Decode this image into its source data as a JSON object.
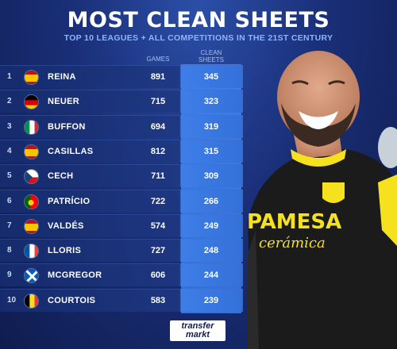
{
  "title": "MOST CLEAN SHEETS",
  "subtitle": "TOP 10 LEAGUES + ALL COMPETITIONS IN THE 21ST CENTURY",
  "columns": {
    "games": "GAMES",
    "clean_sheets_line1": "CLEAN",
    "clean_sheets_line2": "SHEETS"
  },
  "rows": [
    {
      "rank": "1",
      "flag": "spain-flag-icon",
      "name": "REINA",
      "games": "891",
      "clean_sheets": "345"
    },
    {
      "rank": "2",
      "flag": "germany-flag-icon",
      "name": "NEUER",
      "games": "715",
      "clean_sheets": "323"
    },
    {
      "rank": "3",
      "flag": "italy-flag-icon",
      "name": "BUFFON",
      "games": "694",
      "clean_sheets": "319"
    },
    {
      "rank": "4",
      "flag": "spain-flag-icon",
      "name": "CASILLAS",
      "games": "812",
      "clean_sheets": "315"
    },
    {
      "rank": "5",
      "flag": "czech-flag-icon",
      "name": "CECH",
      "games": "711",
      "clean_sheets": "309"
    },
    {
      "rank": "6",
      "flag": "portugal-flag-icon",
      "name": "PATRÍCIO",
      "games": "722",
      "clean_sheets": "266"
    },
    {
      "rank": "7",
      "flag": "spain-flag-icon",
      "name": "VALDÉS",
      "games": "574",
      "clean_sheets": "249"
    },
    {
      "rank": "8",
      "flag": "france-flag-icon",
      "name": "LLORIS",
      "games": "727",
      "clean_sheets": "248"
    },
    {
      "rank": "9",
      "flag": "scotland-flag-icon",
      "name": "MCGREGOR",
      "games": "606",
      "clean_sheets": "244"
    },
    {
      "rank": "10",
      "flag": "belgium-flag-icon",
      "name": "COURTOIS",
      "games": "583",
      "clean_sheets": "239"
    }
  ],
  "player": {
    "sponsor_line1": "PAMESA",
    "sponsor_line2": "cerámica"
  },
  "logo": {
    "line1": "transfer",
    "line2": "markt"
  },
  "colors": {
    "background": "#1a2f78",
    "accent": "#3f7ee8",
    "shirt": "#1b1b1b",
    "shirt_accent": "#f5e11e"
  }
}
